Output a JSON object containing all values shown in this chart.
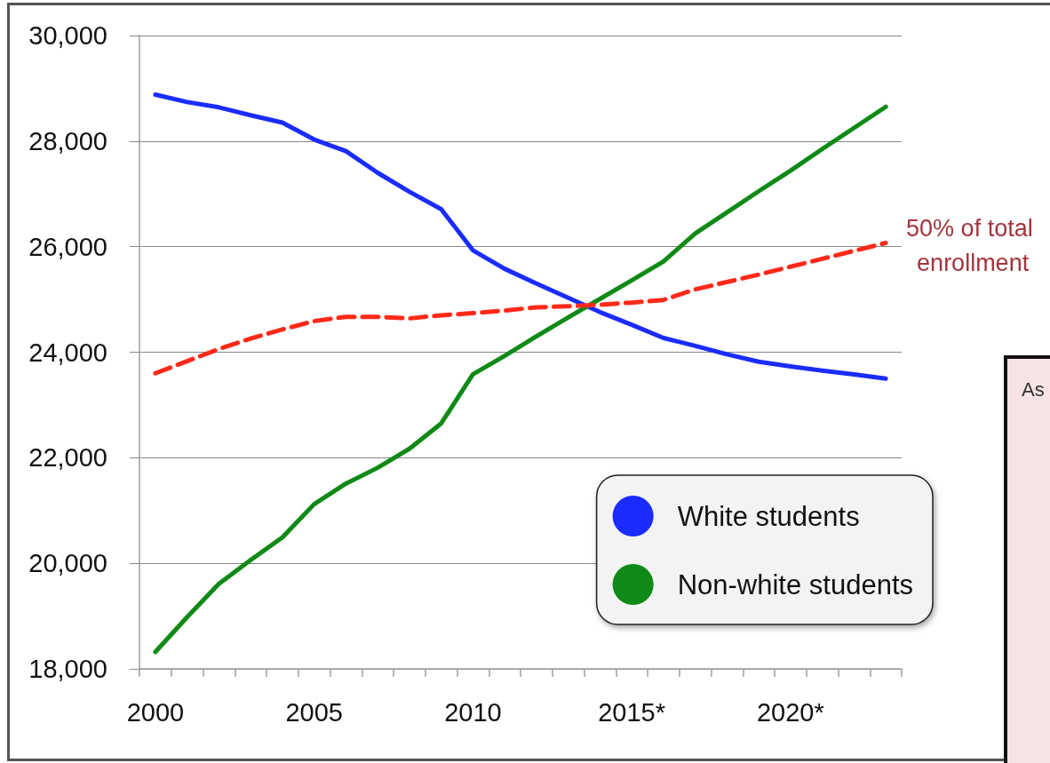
{
  "chart_data": {
    "type": "line",
    "categories": [
      "2000",
      null,
      null,
      null,
      null,
      "2005",
      null,
      null,
      null,
      null,
      "2010",
      null,
      null,
      null,
      null,
      "2015*",
      null,
      null,
      null,
      null,
      "2020*",
      null,
      null,
      null
    ],
    "series": [
      {
        "name": "White students",
        "color": "#1a2cff",
        "values": [
          28880,
          28740,
          28640,
          28490,
          28350,
          28030,
          27810,
          27400,
          27040,
          26710,
          25930,
          25580,
          25300,
          25030,
          24760,
          24520,
          24270,
          24120,
          23960,
          23820,
          23730,
          23650,
          23580,
          23500
        ]
      },
      {
        "name": "Non-white students",
        "color": "#0f8a16",
        "values": [
          18320,
          18980,
          19610,
          20060,
          20490,
          21120,
          21510,
          21810,
          22170,
          22650,
          23580,
          23930,
          24300,
          24660,
          25010,
          25360,
          25720,
          26250,
          26650,
          27050,
          27440,
          27850,
          28250,
          28650
        ]
      },
      {
        "color": "#ff2a1a",
        "line_style": "dashed",
        "values": [
          23600,
          23830,
          24060,
          24260,
          24430,
          24590,
          24670,
          24670,
          24640,
          24700,
          24740,
          24790,
          24850,
          24870,
          24900,
          24940,
          24990,
          25190,
          25330,
          25470,
          25620,
          25770,
          25920,
          26070
        ]
      }
    ],
    "ylim": [
      18000,
      30000
    ],
    "yticks": [
      {
        "value": 18000,
        "label": "18,000"
      },
      {
        "value": 20000,
        "label": "20,000"
      },
      {
        "value": 22000,
        "label": "22,000"
      },
      {
        "value": 24000,
        "label": "24,000"
      },
      {
        "value": 26000,
        "label": "26,000"
      },
      {
        "value": 28000,
        "label": "28,000"
      },
      {
        "value": 30000,
        "label": "30,000"
      }
    ],
    "annotations": [
      "50% of total enrollment",
      "As"
    ],
    "grid": "y",
    "legend": "bottom right",
    "marker": "none",
    "line_style": "solid"
  }
}
